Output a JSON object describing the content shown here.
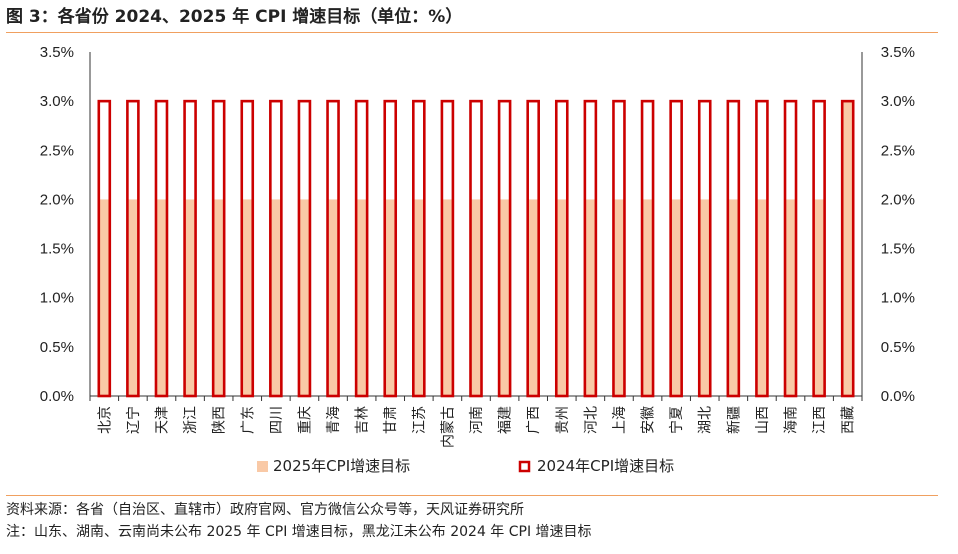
{
  "header": {
    "title": "图 3：各省份 2024、2025 年 CPI 增速目标（单位：%）"
  },
  "footer": {
    "source": "资料来源：各省（自治区、直辖市）政府官网、官方微信公众号等，天风证券研究所",
    "note": "注：山东、湖南、云南尚未公布 2025 年 CPI 增速目标，黑龙江未公布 2024 年 CPI 增速目标"
  },
  "colors": {
    "series_2025": "#f9c9a6",
    "series_2024": "#cc0000",
    "rule": "#f0a060",
    "axis": "#333333"
  },
  "chart_data": {
    "type": "bar",
    "title": "各省份 2024、2025 年 CPI 增速目标（单位：%）",
    "categories": [
      "北京",
      "辽宁",
      "天津",
      "浙江",
      "陕西",
      "广东",
      "四川",
      "重庆",
      "青海",
      "吉林",
      "甘肃",
      "江苏",
      "内蒙古",
      "河南",
      "福建",
      "广西",
      "贵州",
      "河北",
      "上海",
      "安徽",
      "宁夏",
      "湖北",
      "新疆",
      "山西",
      "海南",
      "江西",
      "西藏"
    ],
    "series": [
      {
        "name": "2025年CPI增速目标",
        "values": [
          2,
          2,
          2,
          2,
          2,
          2,
          2,
          2,
          2,
          2,
          2,
          2,
          2,
          2,
          2,
          2,
          2,
          2,
          2,
          2,
          2,
          2,
          2,
          2,
          2,
          2,
          3
        ]
      },
      {
        "name": "2024年CPI增速目标",
        "values": [
          3,
          3,
          3,
          3,
          3,
          3,
          3,
          3,
          3,
          3,
          3,
          3,
          3,
          3,
          3,
          3,
          3,
          3,
          3,
          3,
          3,
          3,
          3,
          3,
          3,
          3,
          3
        ]
      }
    ],
    "ylim": [
      0,
      3.5
    ],
    "yticks": [
      "0.0%",
      "0.5%",
      "1.0%",
      "1.5%",
      "2.0%",
      "2.5%",
      "3.0%",
      "3.5%"
    ],
    "secondary_yticks": [
      "0.0%",
      "0.5%",
      "1.0%",
      "1.5%",
      "2.0%",
      "2.5%",
      "3.0%",
      "3.5%"
    ],
    "grid": false,
    "legend_position": "bottom"
  }
}
